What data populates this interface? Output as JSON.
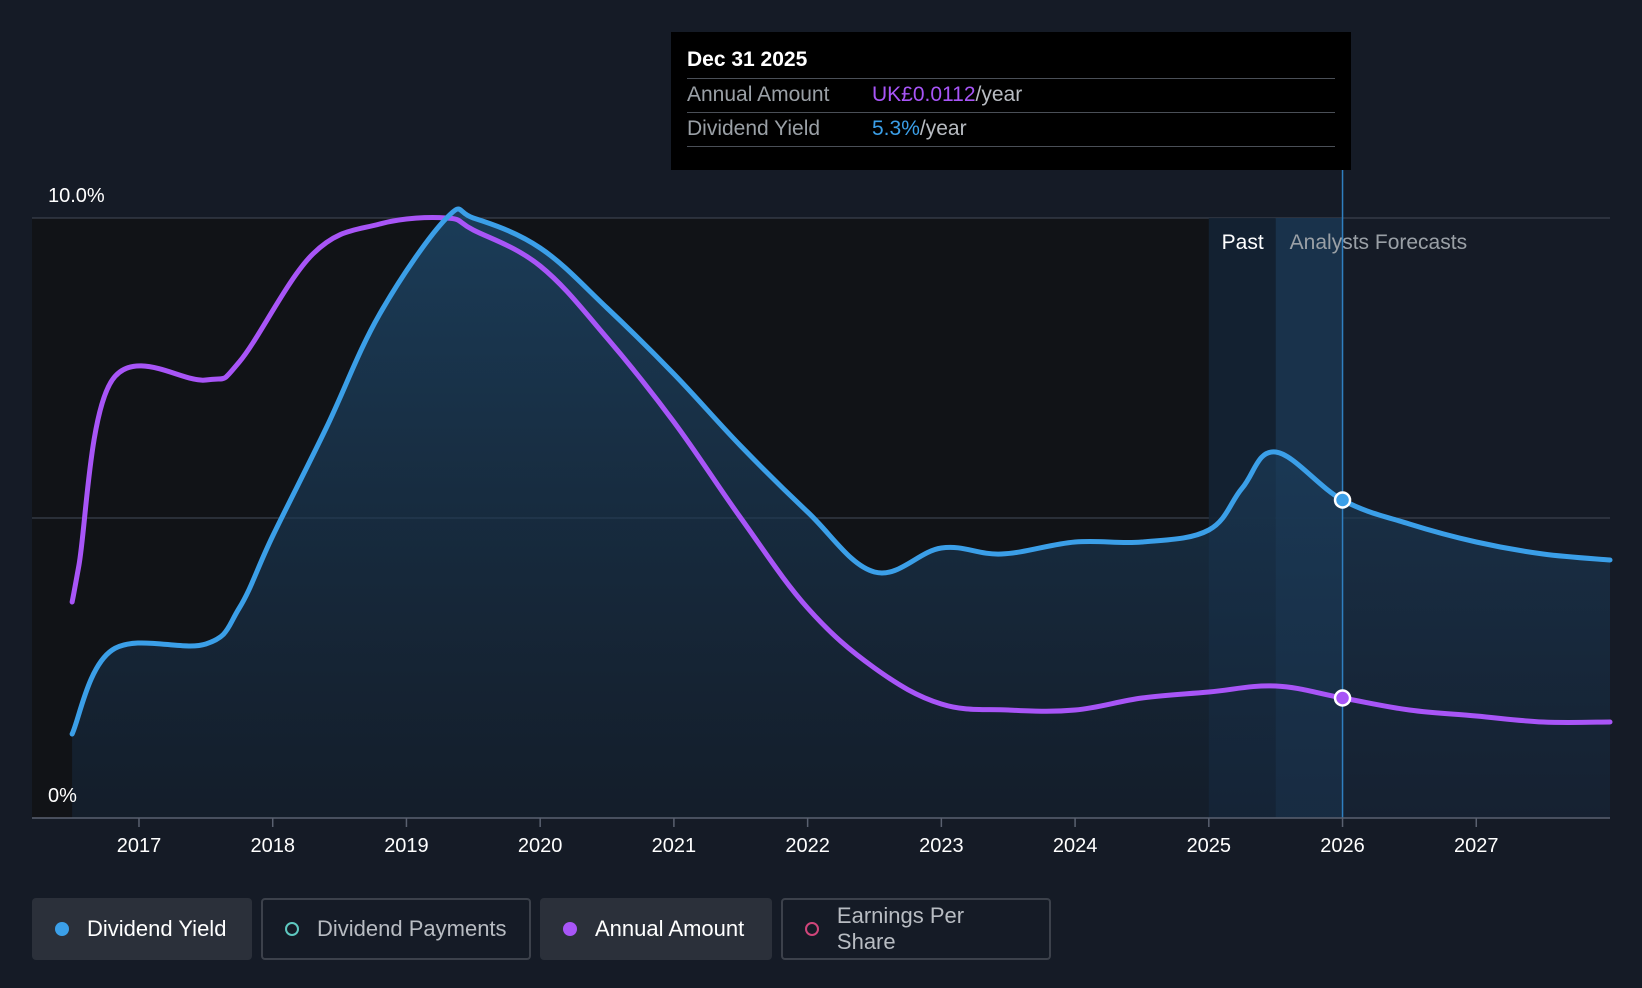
{
  "tooltip": {
    "date": "Dec 31 2025",
    "rows": [
      {
        "label": "Annual Amount",
        "value": "UK£0.0112",
        "unit": "/year"
      },
      {
        "label": "Dividend Yield",
        "value": "5.3%",
        "unit": "/year"
      }
    ]
  },
  "period_labels": {
    "past": "Past",
    "forecast": "Analysts Forecasts"
  },
  "legend": [
    {
      "label": "Dividend Yield",
      "color": "#3b9fe8",
      "active": true,
      "filled": true
    },
    {
      "label": "Dividend Payments",
      "color": "#5ec8c0",
      "active": false,
      "filled": false
    },
    {
      "label": "Annual Amount",
      "color": "#a855f7",
      "active": true,
      "filled": true
    },
    {
      "label": "Earnings Per Share",
      "color": "#d0457a",
      "active": false,
      "filled": false
    }
  ],
  "chart_data": {
    "type": "line",
    "title": "",
    "xlabel": "",
    "ylabel": "",
    "x_ticks": [
      "2017",
      "2018",
      "2019",
      "2020",
      "2021",
      "2022",
      "2023",
      "2024",
      "2025",
      "2026",
      "2027"
    ],
    "y_ticks": [
      "0%",
      "10.0%"
    ],
    "ylim": [
      0,
      10
    ],
    "xlim": [
      2016.2,
      2028.0
    ],
    "grid": "horizontal",
    "legend_position": "bottom",
    "past_forecast_split": 2025.5,
    "highlight_band": [
      2025.0,
      2026.0
    ],
    "series": [
      {
        "name": "Dividend Yield",
        "color": "#3b9fe8",
        "fill": true,
        "x": [
          2016.5,
          2016.8,
          2017.5,
          2017.75,
          2018.0,
          2018.4,
          2018.8,
          2019.3,
          2019.5,
          2020.0,
          2020.5,
          2021.0,
          2021.5,
          2022.0,
          2022.5,
          2023.0,
          2023.45,
          2024.0,
          2024.5,
          2025.0,
          2025.25,
          2025.5,
          2026.0,
          2026.5,
          2027.0,
          2027.5,
          2028.0
        ],
        "values": [
          1.4,
          2.8,
          2.9,
          3.5,
          4.7,
          6.5,
          8.4,
          10.0,
          10.0,
          9.5,
          8.5,
          7.4,
          6.2,
          5.1,
          4.1,
          4.5,
          4.4,
          4.6,
          4.6,
          4.8,
          5.5,
          6.1,
          5.3,
          4.9,
          4.6,
          4.4,
          4.3
        ]
      },
      {
        "name": "Annual Amount",
        "color": "#a855f7",
        "fill": false,
        "x": [
          2016.5,
          2016.55,
          2016.8,
          2017.5,
          2017.75,
          2018.3,
          2018.8,
          2019.3,
          2019.5,
          2020.0,
          2020.5,
          2021.0,
          2021.5,
          2022.0,
          2022.5,
          2023.0,
          2023.5,
          2024.0,
          2024.5,
          2025.0,
          2025.5,
          2026.0,
          2026.5,
          2027.0,
          2027.5,
          2028.0
        ],
        "values": [
          3.6,
          4.2,
          7.3,
          7.3,
          7.6,
          9.4,
          9.9,
          10.0,
          9.8,
          9.2,
          8.0,
          6.6,
          5.0,
          3.5,
          2.5,
          1.9,
          1.8,
          1.8,
          2.0,
          2.1,
          2.2,
          2.0,
          1.8,
          1.7,
          1.6,
          1.6
        ]
      }
    ],
    "highlighted_points": [
      {
        "series": "Dividend Yield",
        "x": 2026.0,
        "value": 5.3
      },
      {
        "series": "Annual Amount",
        "x": 2026.0,
        "value": 2.0
      }
    ]
  }
}
